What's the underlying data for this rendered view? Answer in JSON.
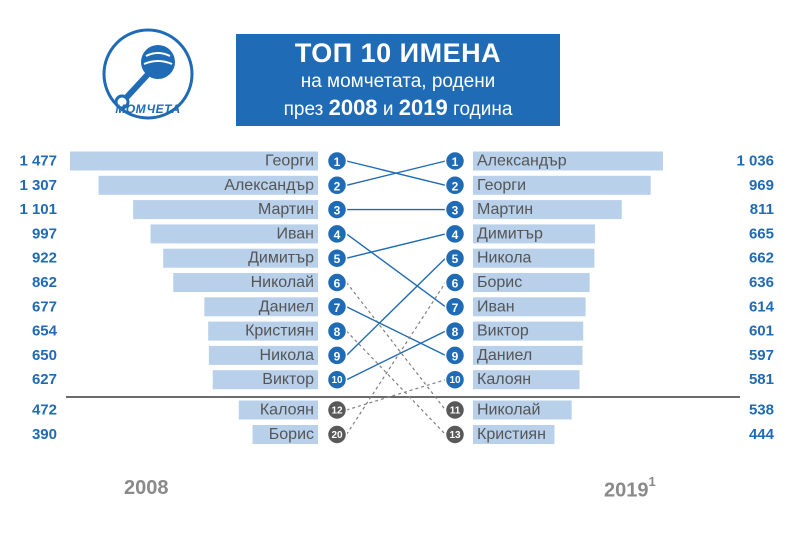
{
  "header": {
    "logo_label": "МОМЧЕТА",
    "title_line1": "ТОП 10 ИМЕНА",
    "title_line2": "на момчетата, родени",
    "title_line3_prefix": "през",
    "title_line3_year1": "2008",
    "title_line3_and": "и",
    "title_line3_year2": "2019",
    "title_line3_suffix": "година"
  },
  "footer": {
    "year_left": "2008",
    "year_right": "2019",
    "year_right_note": "1"
  },
  "colors": {
    "brand_blue": "#1f6bb5",
    "bar_fill": "#b8d0ea",
    "rank_blue": "#1f6bb5",
    "rank_gray": "#595959",
    "connector": "#1f6bb5",
    "connector_dashed": "#7f7f7f",
    "value_text": "#1f6bb5"
  },
  "chart_data": {
    "type": "bar",
    "title": "ТОП 10 ИМЕНА на момчетата, родени през 2008 и 2019 година",
    "series": [
      {
        "name": "2008",
        "entries": [
          {
            "name": "Георги",
            "value": 1477,
            "value_label": "1 477",
            "rank": 1
          },
          {
            "name": "Александър",
            "value": 1307,
            "value_label": "1 307",
            "rank": 2
          },
          {
            "name": "Мартин",
            "value": 1101,
            "value_label": "1 101",
            "rank": 3
          },
          {
            "name": "Иван",
            "value": 997,
            "value_label": "997",
            "rank": 4
          },
          {
            "name": "Димитър",
            "value": 922,
            "value_label": "922",
            "rank": 5
          },
          {
            "name": "Николай",
            "value": 862,
            "value_label": "862",
            "rank": 6
          },
          {
            "name": "Даниел",
            "value": 677,
            "value_label": "677",
            "rank": 7
          },
          {
            "name": "Кристиян",
            "value": 654,
            "value_label": "654",
            "rank": 8
          },
          {
            "name": "Никола",
            "value": 650,
            "value_label": "650",
            "rank": 9
          },
          {
            "name": "Виктор",
            "value": 627,
            "value_label": "627",
            "rank": 10
          },
          {
            "name": "Калоян",
            "value": 472,
            "value_label": "472",
            "rank": 12
          },
          {
            "name": "Борис",
            "value": 390,
            "value_label": "390",
            "rank": 20
          }
        ]
      },
      {
        "name": "2019",
        "entries": [
          {
            "name": "Александър",
            "value": 1036,
            "value_label": "1 036",
            "rank": 1
          },
          {
            "name": "Георги",
            "value": 969,
            "value_label": "969",
            "rank": 2
          },
          {
            "name": "Мартин",
            "value": 811,
            "value_label": "811",
            "rank": 3
          },
          {
            "name": "Димитър",
            "value": 665,
            "value_label": "665",
            "rank": 4
          },
          {
            "name": "Никола",
            "value": 662,
            "value_label": "662",
            "rank": 5
          },
          {
            "name": "Борис",
            "value": 636,
            "value_label": "636",
            "rank": 6
          },
          {
            "name": "Иван",
            "value": 614,
            "value_label": "614",
            "rank": 7
          },
          {
            "name": "Виктор",
            "value": 601,
            "value_label": "601",
            "rank": 8
          },
          {
            "name": "Даниел",
            "value": 597,
            "value_label": "597",
            "rank": 9
          },
          {
            "name": "Калоян",
            "value": 581,
            "value_label": "581",
            "rank": 10
          },
          {
            "name": "Николай",
            "value": 538,
            "value_label": "538",
            "rank": 11
          },
          {
            "name": "Кристиян",
            "value": 444,
            "value_label": "444",
            "rank": 13
          }
        ]
      }
    ],
    "links": [
      {
        "from_row": 0,
        "to_row": 1,
        "style": "solid"
      },
      {
        "from_row": 1,
        "to_row": 0,
        "style": "solid"
      },
      {
        "from_row": 2,
        "to_row": 2,
        "style": "solid"
      },
      {
        "from_row": 3,
        "to_row": 6,
        "style": "solid"
      },
      {
        "from_row": 4,
        "to_row": 3,
        "style": "solid"
      },
      {
        "from_row": 5,
        "to_row": 10,
        "style": "dashed"
      },
      {
        "from_row": 6,
        "to_row": 8,
        "style": "solid"
      },
      {
        "from_row": 7,
        "to_row": 11,
        "style": "dashed"
      },
      {
        "from_row": 8,
        "to_row": 4,
        "style": "solid"
      },
      {
        "from_row": 9,
        "to_row": 7,
        "style": "solid"
      },
      {
        "from_row": 10,
        "to_row": 9,
        "style": "dashed"
      },
      {
        "from_row": 11,
        "to_row": 5,
        "style": "dashed"
      }
    ]
  }
}
